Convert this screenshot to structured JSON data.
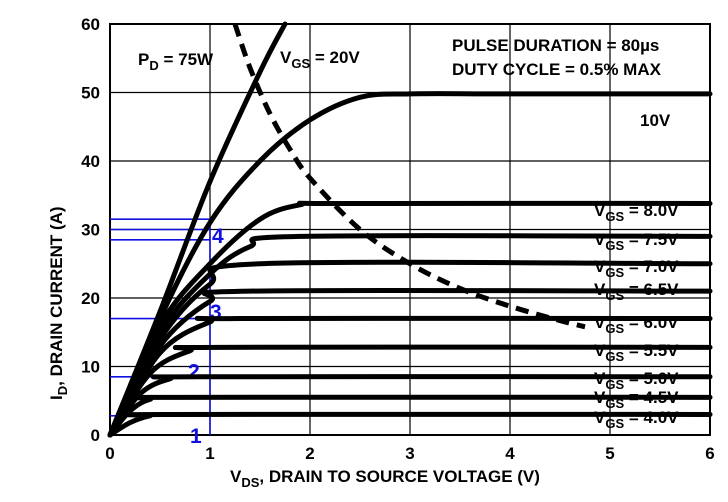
{
  "chart_data": {
    "type": "line",
    "xlabel": "V",
    "xlabel_sub": "DS",
    "xlabel_rest": ", DRAIN TO SOURCE VOLTAGE (V)",
    "ylabel": "I",
    "ylabel_sub": "D",
    "ylabel_rest": ", DRAIN CURRENT (A)",
    "xlim": [
      0,
      6
    ],
    "ylim": [
      0,
      60
    ],
    "xticks": [
      "0",
      "1",
      "2",
      "3",
      "4",
      "5",
      "6"
    ],
    "yticks": [
      "0",
      "10",
      "20",
      "30",
      "40",
      "50",
      "60"
    ],
    "grid": true,
    "notes": {
      "pulse": "PULSE DURATION = 80µs",
      "duty": "DUTY CYCLE = 0.5% MAX"
    },
    "series": [
      {
        "name": "VGS = 20V",
        "label_main": "V",
        "label_sub": "GS",
        "label_rest": " = 20V",
        "x": [
          0,
          0.5,
          1,
          1.5,
          1.75
        ],
        "y": [
          0,
          18,
          37,
          53,
          60
        ]
      },
      {
        "name": "10V",
        "label_main": "10V",
        "label_sub": "",
        "label_rest": "",
        "x": [
          0,
          0.5,
          1,
          1.5,
          2,
          2.5,
          3,
          4,
          6
        ],
        "y": [
          0,
          17,
          31,
          40,
          46,
          49.3,
          49.8,
          49.8,
          49.8
        ]
      },
      {
        "name": "VGS = 8.0V",
        "label_main": "V",
        "label_sub": "GS",
        "label_rest": " = 8.0V",
        "x": [
          0,
          0.5,
          1,
          1.5,
          1.9,
          2.3,
          6
        ],
        "y": [
          0,
          16,
          25,
          31.5,
          33.6,
          33.8,
          33.8
        ]
      },
      {
        "name": "VGS = 7.5V",
        "label_main": "V",
        "label_sub": "GS",
        "label_rest": " = 7.5V",
        "x": [
          0,
          0.5,
          1,
          1.4,
          1.9,
          6
        ],
        "y": [
          0,
          15,
          23.5,
          27.5,
          29,
          29
        ]
      },
      {
        "name": "VGS = 7.0V",
        "label_main": "V",
        "label_sub": "GS",
        "label_rest": " = 7.0V",
        "x": [
          0,
          0.5,
          1,
          1.5,
          6
        ],
        "y": [
          0,
          14,
          22,
          25,
          25
        ]
      },
      {
        "name": "VGS = 6.5V",
        "label_main": "V",
        "label_sub": "GS",
        "label_rest": " = 6.5V",
        "x": [
          0,
          0.5,
          1,
          1.4,
          6
        ],
        "y": [
          0,
          13,
          19.5,
          21,
          21
        ]
      },
      {
        "name": "VGS = 6.0V",
        "label_main": "V",
        "label_sub": "GS",
        "label_rest": " = 6.0V",
        "x": [
          0,
          0.5,
          1,
          1.3,
          6
        ],
        "y": [
          0,
          12,
          16.5,
          17,
          17
        ]
      },
      {
        "name": "VGS = 5.5V",
        "label_main": "V",
        "label_sub": "GS",
        "label_rest": " = 5.5V",
        "x": [
          0,
          0.4,
          0.8,
          1.1,
          6
        ],
        "y": [
          0,
          9,
          12.3,
          12.8,
          12.8
        ]
      },
      {
        "name": "VGS = 5.0V",
        "label_main": "V",
        "label_sub": "GS",
        "label_rest": " = 5.0V",
        "x": [
          0,
          0.3,
          0.6,
          0.9,
          6
        ],
        "y": [
          0,
          6,
          8.2,
          8.5,
          8.5
        ]
      },
      {
        "name": "VGS = 4.5V",
        "label_main": "V",
        "label_sub": "GS",
        "label_rest": " = 4.5V",
        "x": [
          0,
          0.2,
          0.4,
          0.7,
          6
        ],
        "y": [
          0,
          3.5,
          5.2,
          5.5,
          5.5
        ]
      },
      {
        "name": "VGS = 4.0V",
        "label_main": "V",
        "label_sub": "GS",
        "label_rest": " = 4.0V",
        "x": [
          0,
          0.2,
          0.4,
          0.6,
          6
        ],
        "y": [
          0,
          1.8,
          2.8,
          3,
          3
        ]
      }
    ],
    "power_limit": {
      "label_main": "P",
      "label_sub": "D",
      "label_rest": " = 75W",
      "x": [
        1.25,
        1.4,
        1.6,
        1.8,
        2.0,
        2.5,
        3.0,
        3.5,
        4.0,
        4.5,
        4.75
      ],
      "y": [
        60,
        53.6,
        46.9,
        41.7,
        37.5,
        30,
        25,
        21.4,
        18.8,
        16.7,
        15.8
      ]
    },
    "operating_points": {
      "labels": [
        "1",
        "2",
        "3",
        "4"
      ],
      "x_limit": 1.0,
      "levels": [
        2.8,
        8.5,
        17,
        28.5,
        30,
        31.5
      ]
    }
  }
}
